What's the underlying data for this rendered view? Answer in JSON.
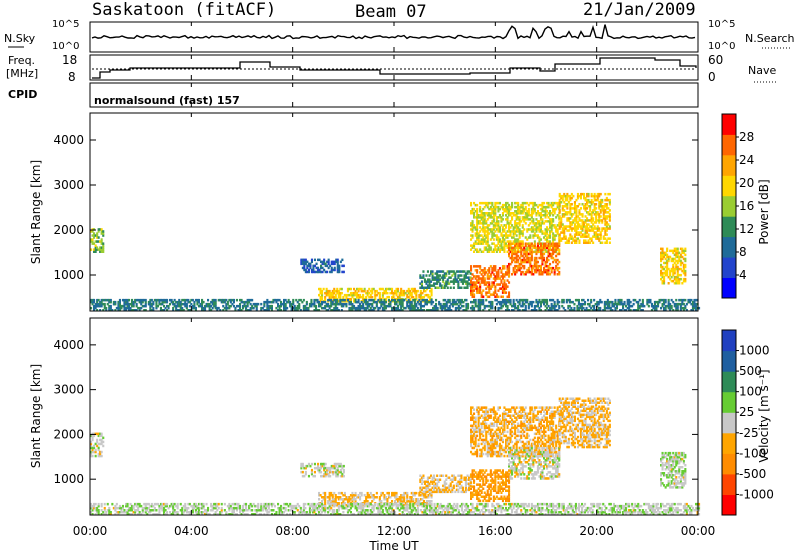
{
  "header": {
    "station": "Saskatoon (fitACF)",
    "beam": "Beam 07",
    "date": "21/Jan/2009"
  },
  "noise_panel": {
    "left_label": "N.Sky",
    "left_ticks": [
      "10^5",
      "10^0"
    ],
    "right_label": "N.Search",
    "right_ticks": [
      "10^5",
      "10^0"
    ]
  },
  "freq_panel": {
    "left_label_line1": "Freq.",
    "left_label_line2": "[MHz]",
    "left_ticks": [
      "18",
      "8"
    ],
    "right_label": "Nave",
    "right_ticks": [
      "60",
      "0"
    ]
  },
  "cpid_panel": {
    "label": "CPID",
    "text": "normalsound (fast) 157"
  },
  "x_axis": {
    "ticks": [
      "00:00",
      "04:00",
      "08:00",
      "12:00",
      "16:00",
      "20:00",
      "00:00"
    ],
    "label": "Time UT"
  },
  "chart_data": [
    {
      "type": "heatmap",
      "ylabel": "Slant Range [km]",
      "yticks": [
        "1000",
        "2000",
        "3000",
        "4000"
      ],
      "ylim": [
        200,
        4600
      ],
      "xlim": [
        0,
        24
      ],
      "colorbar": {
        "label": "Power [dB]",
        "ticks": [
          "4",
          "8",
          "12",
          "16",
          "20",
          "24",
          "28"
        ],
        "range": [
          0,
          32
        ],
        "colors": [
          "#0000ff",
          "#2244cc",
          "#1f6b99",
          "#2e8b57",
          "#9acd32",
          "#ffd700",
          "#ffa500",
          "#ff6600",
          "#ff0000"
        ]
      },
      "regions": [
        {
          "t0": 0.0,
          "t1": 0.5,
          "r0": 1500,
          "r1": 2000,
          "level": 16
        },
        {
          "t0": 8.3,
          "t1": 10.0,
          "r0": 1050,
          "r1": 1350,
          "level": 8
        },
        {
          "t0": 9.0,
          "t1": 13.5,
          "r0": 400,
          "r1": 700,
          "level": 20
        },
        {
          "t0": 13.0,
          "t1": 15.0,
          "r0": 700,
          "r1": 1100,
          "level": 12
        },
        {
          "t0": 15.0,
          "t1": 16.5,
          "r0": 500,
          "r1": 1200,
          "level": 26
        },
        {
          "t0": 15.0,
          "t1": 18.5,
          "r0": 1500,
          "r1": 2600,
          "level": 18
        },
        {
          "t0": 16.5,
          "t1": 18.5,
          "r0": 1000,
          "r1": 1700,
          "level": 26
        },
        {
          "t0": 18.5,
          "t1": 20.5,
          "r0": 1700,
          "r1": 2800,
          "level": 20
        },
        {
          "t0": 22.5,
          "t1": 23.5,
          "r0": 800,
          "r1": 1600,
          "level": 20
        },
        {
          "t0": 0.0,
          "t1": 24.0,
          "r0": 200,
          "r1": 450,
          "level": 10
        }
      ]
    },
    {
      "type": "heatmap",
      "ylabel": "Slant Range [km]",
      "yticks": [
        "1000",
        "2000",
        "3000",
        "4000"
      ],
      "ylim": [
        200,
        4600
      ],
      "xlim": [
        0,
        24
      ],
      "colorbar": {
        "label": "Velocity [m s⁻¹]",
        "ticks": [
          "1000",
          "500",
          "100",
          "25",
          "-25",
          "-100",
          "-500",
          "-1000"
        ],
        "range": [
          -1000,
          1000
        ],
        "colors": [
          "#ff0000",
          "#ff4500",
          "#ff8c00",
          "#ffa500",
          "#c8c8c8",
          "#66cc33",
          "#2e8b57",
          "#1f5fa0",
          "#2040c0"
        ]
      },
      "regions": [
        {
          "t0": 0.0,
          "t1": 0.5,
          "r0": 1500,
          "r1": 2000,
          "level": 0
        },
        {
          "t0": 8.3,
          "t1": 10.0,
          "r0": 1050,
          "r1": 1350,
          "level": 0
        },
        {
          "t0": 9.0,
          "t1": 13.5,
          "r0": 400,
          "r1": 700,
          "level": -150
        },
        {
          "t0": 13.0,
          "t1": 15.0,
          "r0": 700,
          "r1": 1100,
          "level": -120
        },
        {
          "t0": 15.0,
          "t1": 16.5,
          "r0": 500,
          "r1": 1200,
          "level": -300
        },
        {
          "t0": 15.0,
          "t1": 18.5,
          "r0": 1500,
          "r1": 2600,
          "level": -200
        },
        {
          "t0": 16.5,
          "t1": 18.5,
          "r0": 1000,
          "r1": 1700,
          "level": 0
        },
        {
          "t0": 18.5,
          "t1": 20.5,
          "r0": 1700,
          "r1": 2800,
          "level": -150
        },
        {
          "t0": 22.5,
          "t1": 23.5,
          "r0": 800,
          "r1": 1600,
          "level": 60
        },
        {
          "t0": 0.0,
          "t1": 24.0,
          "r0": 200,
          "r1": 450,
          "level": 60
        }
      ]
    }
  ]
}
